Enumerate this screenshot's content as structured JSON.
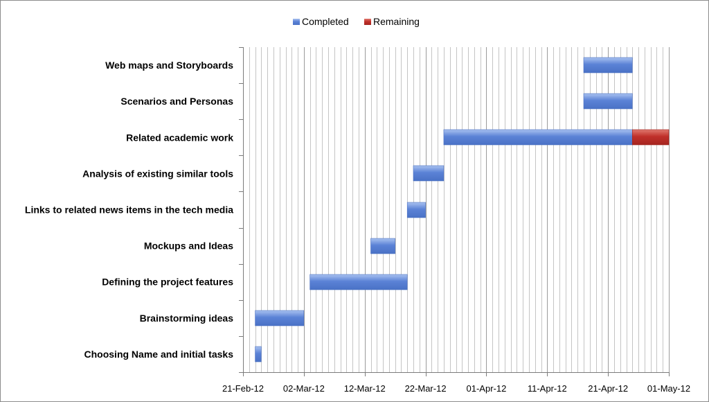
{
  "chart_data": {
    "type": "bar",
    "orientation": "horizontal",
    "stacked": true,
    "title": "",
    "xlabel": "",
    "ylabel": "",
    "legend_position": "top-center",
    "grid": true,
    "xlim": [
      "2012-02-21",
      "2012-05-01"
    ],
    "x_ticks": [
      "21-Feb-12",
      "02-Mar-12",
      "12-Mar-12",
      "22-Mar-12",
      "01-Apr-12",
      "11-Apr-12",
      "21-Apr-12",
      "01-May-12"
    ],
    "series": [
      {
        "name": "Completed",
        "color": "#5b82d6"
      },
      {
        "name": "Remaining",
        "color": "#c0302a"
      }
    ],
    "tasks": [
      {
        "label": "Web maps and Storyboards",
        "start": "2012-04-17",
        "completed_days": 8,
        "remaining_days": 0
      },
      {
        "label": "Scenarios and Personas",
        "start": "2012-04-17",
        "completed_days": 8,
        "remaining_days": 0
      },
      {
        "label": "Related academic work",
        "start": "2012-03-25",
        "completed_days": 31,
        "remaining_days": 6
      },
      {
        "label": "Analysis of existing similar tools",
        "start": "2012-03-20",
        "completed_days": 5,
        "remaining_days": 0
      },
      {
        "label": "Links to related news items in the tech media",
        "start": "2012-03-19",
        "completed_days": 3,
        "remaining_days": 0
      },
      {
        "label": "Mockups and Ideas",
        "start": "2012-03-13",
        "completed_days": 4,
        "remaining_days": 0
      },
      {
        "label": "Defining the project features",
        "start": "2012-03-03",
        "completed_days": 16,
        "remaining_days": 0
      },
      {
        "label": "Brainstorming ideas",
        "start": "2012-02-23",
        "completed_days": 8,
        "remaining_days": 0
      },
      {
        "label": "Choosing Name and initial tasks",
        "start": "2012-02-23",
        "completed_days": 1,
        "remaining_days": 0
      }
    ]
  }
}
